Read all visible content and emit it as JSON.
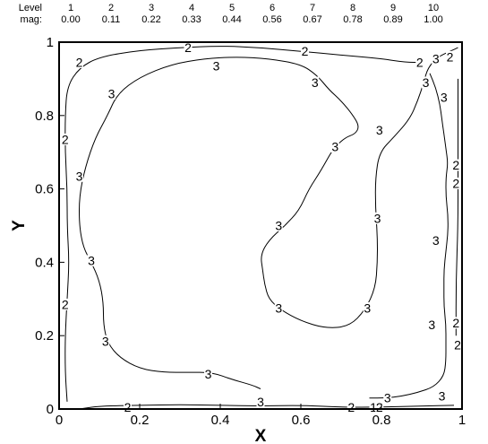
{
  "chart_data": {
    "type": "contour",
    "xlabel": "X",
    "ylabel": "Y",
    "xlim": [
      0,
      1
    ],
    "ylim": [
      0,
      1
    ],
    "x_ticks": [
      "0",
      "0.2",
      "0.4",
      "0.6",
      "0.8",
      "1"
    ],
    "y_ticks": [
      "0",
      "0.2",
      "0.4",
      "0.6",
      "0.8",
      "1"
    ],
    "legend": {
      "placement": "top",
      "row_labels": [
        "Level",
        "mag:"
      ],
      "levels": [
        "1",
        "2",
        "3",
        "4",
        "5",
        "6",
        "7",
        "8",
        "9",
        "10"
      ],
      "mag": [
        "0.00",
        "0.11",
        "0.22",
        "0.33",
        "0.44",
        "0.56",
        "0.67",
        "0.78",
        "0.89",
        "1.00"
      ]
    },
    "contour_labels": [
      {
        "text": "2",
        "x": 0.32,
        "y": 0.985
      },
      {
        "text": "2",
        "x": 0.61,
        "y": 0.975
      },
      {
        "text": "2",
        "x": 0.05,
        "y": 0.945
      },
      {
        "text": "3",
        "x": 0.39,
        "y": 0.935
      },
      {
        "text": "2",
        "x": 0.895,
        "y": 0.945
      },
      {
        "text": "3",
        "x": 0.935,
        "y": 0.955
      },
      {
        "text": "2",
        "x": 0.97,
        "y": 0.96
      },
      {
        "text": "3",
        "x": 0.13,
        "y": 0.86
      },
      {
        "text": "3",
        "x": 0.635,
        "y": 0.89
      },
      {
        "text": "3",
        "x": 0.91,
        "y": 0.89
      },
      {
        "text": "3",
        "x": 0.955,
        "y": 0.85
      },
      {
        "text": "3",
        "x": 0.795,
        "y": 0.76
      },
      {
        "text": "3",
        "x": 0.685,
        "y": 0.715
      },
      {
        "text": "2",
        "x": 0.015,
        "y": 0.735
      },
      {
        "text": "3",
        "x": 0.05,
        "y": 0.635
      },
      {
        "text": "3",
        "x": 0.545,
        "y": 0.5
      },
      {
        "text": "3",
        "x": 0.79,
        "y": 0.52
      },
      {
        "text": "3",
        "x": 0.935,
        "y": 0.46
      },
      {
        "text": "2",
        "x": 0.985,
        "y": 0.665
      },
      {
        "text": "2",
        "x": 0.985,
        "y": 0.615
      },
      {
        "text": "3",
        "x": 0.08,
        "y": 0.405
      },
      {
        "text": "2",
        "x": 0.015,
        "y": 0.285
      },
      {
        "text": "3",
        "x": 0.545,
        "y": 0.275
      },
      {
        "text": "3",
        "x": 0.765,
        "y": 0.275
      },
      {
        "text": "3",
        "x": 0.925,
        "y": 0.23
      },
      {
        "text": "2",
        "x": 0.985,
        "y": 0.235
      },
      {
        "text": "3",
        "x": 0.115,
        "y": 0.185
      },
      {
        "text": "2",
        "x": 0.99,
        "y": 0.175
      },
      {
        "text": "3",
        "x": 0.37,
        "y": 0.095
      },
      {
        "text": "3",
        "x": 0.815,
        "y": 0.03
      },
      {
        "text": "3",
        "x": 0.95,
        "y": 0.035
      },
      {
        "text": "2",
        "x": 0.17,
        "y": 0.005
      },
      {
        "text": "3",
        "x": 0.5,
        "y": 0.02
      },
      {
        "text": "2",
        "x": 0.725,
        "y": 0.0
      },
      {
        "text": "1",
        "x": 0.78,
        "y": 0.0
      },
      {
        "text": "2",
        "x": 0.795,
        "y": 0.0
      }
    ],
    "contours": [
      {
        "level": 3,
        "points": [
          [
            0.56,
            0.5
          ],
          [
            0.52,
            0.46
          ],
          [
            0.5,
            0.42
          ],
          [
            0.505,
            0.38
          ],
          [
            0.51,
            0.34
          ],
          [
            0.52,
            0.3
          ],
          [
            0.55,
            0.27
          ],
          [
            0.6,
            0.24
          ],
          [
            0.66,
            0.22
          ],
          [
            0.72,
            0.225
          ],
          [
            0.76,
            0.27
          ],
          [
            0.785,
            0.33
          ],
          [
            0.79,
            0.4
          ],
          [
            0.79,
            0.47
          ],
          [
            0.785,
            0.55
          ],
          [
            0.785,
            0.63
          ],
          [
            0.795,
            0.7
          ],
          [
            0.83,
            0.74
          ],
          [
            0.87,
            0.79
          ],
          [
            0.89,
            0.84
          ],
          [
            0.905,
            0.89
          ],
          [
            0.915,
            0.93
          ],
          [
            0.94,
            0.96
          ],
          [
            0.97,
            0.975
          ],
          [
            0.99,
            0.985
          ]
        ]
      },
      {
        "level": 3,
        "points": [
          [
            0.56,
            0.5
          ],
          [
            0.595,
            0.54
          ],
          [
            0.62,
            0.6
          ],
          [
            0.65,
            0.65
          ],
          [
            0.68,
            0.71
          ],
          [
            0.71,
            0.74
          ],
          [
            0.735,
            0.75
          ],
          [
            0.745,
            0.77
          ],
          [
            0.73,
            0.8
          ],
          [
            0.7,
            0.84
          ],
          [
            0.67,
            0.87
          ],
          [
            0.64,
            0.91
          ],
          [
            0.6,
            0.94
          ],
          [
            0.52,
            0.955
          ],
          [
            0.44,
            0.96
          ],
          [
            0.36,
            0.955
          ],
          [
            0.28,
            0.94
          ],
          [
            0.2,
            0.905
          ],
          [
            0.145,
            0.86
          ],
          [
            0.12,
            0.8
          ],
          [
            0.09,
            0.74
          ],
          [
            0.065,
            0.66
          ],
          [
            0.05,
            0.58
          ],
          [
            0.05,
            0.5
          ],
          [
            0.06,
            0.44
          ],
          [
            0.08,
            0.4
          ],
          [
            0.1,
            0.35
          ],
          [
            0.11,
            0.29
          ],
          [
            0.11,
            0.23
          ],
          [
            0.12,
            0.18
          ],
          [
            0.15,
            0.14
          ],
          [
            0.2,
            0.11
          ],
          [
            0.26,
            0.1
          ],
          [
            0.32,
            0.1
          ],
          [
            0.38,
            0.1
          ],
          [
            0.43,
            0.08
          ],
          [
            0.48,
            0.065
          ],
          [
            0.5,
            0.055
          ]
        ]
      },
      {
        "level": 3,
        "points": [
          [
            0.92,
            0.915
          ],
          [
            0.935,
            0.875
          ],
          [
            0.945,
            0.83
          ],
          [
            0.95,
            0.79
          ],
          [
            0.955,
            0.75
          ],
          [
            0.96,
            0.71
          ],
          [
            0.965,
            0.67
          ],
          [
            0.96,
            0.63
          ],
          [
            0.96,
            0.58
          ],
          [
            0.965,
            0.53
          ],
          [
            0.965,
            0.48
          ],
          [
            0.96,
            0.43
          ],
          [
            0.955,
            0.38
          ],
          [
            0.955,
            0.33
          ],
          [
            0.955,
            0.28
          ],
          [
            0.96,
            0.23
          ],
          [
            0.96,
            0.18
          ],
          [
            0.96,
            0.13
          ],
          [
            0.955,
            0.09
          ],
          [
            0.93,
            0.06
          ],
          [
            0.89,
            0.045
          ],
          [
            0.85,
            0.035
          ],
          [
            0.81,
            0.03
          ],
          [
            0.77,
            0.03
          ]
        ]
      },
      {
        "level": 2,
        "points": [
          [
            0.02,
            0.02
          ],
          [
            0.015,
            0.1
          ],
          [
            0.015,
            0.2
          ],
          [
            0.02,
            0.3
          ],
          [
            0.025,
            0.4
          ],
          [
            0.02,
            0.5
          ],
          [
            0.02,
            0.6
          ],
          [
            0.015,
            0.7
          ],
          [
            0.015,
            0.8
          ],
          [
            0.02,
            0.88
          ],
          [
            0.05,
            0.93
          ],
          [
            0.1,
            0.96
          ],
          [
            0.2,
            0.978
          ],
          [
            0.3,
            0.985
          ],
          [
            0.4,
            0.99
          ],
          [
            0.5,
            0.985
          ],
          [
            0.6,
            0.975
          ],
          [
            0.7,
            0.965
          ],
          [
            0.8,
            0.955
          ],
          [
            0.86,
            0.945
          ],
          [
            0.9,
            0.945
          ]
        ]
      },
      {
        "level": 2,
        "points": [
          [
            0.985,
            0.2
          ],
          [
            0.985,
            0.35
          ],
          [
            0.99,
            0.5
          ],
          [
            0.99,
            0.65
          ],
          [
            0.99,
            0.8
          ],
          [
            0.99,
            0.9
          ]
        ]
      },
      {
        "level": 2,
        "points": [
          [
            0.05,
            0.0
          ],
          [
            0.1,
            0.008
          ],
          [
            0.2,
            0.01
          ],
          [
            0.3,
            0.012
          ],
          [
            0.4,
            0.01
          ],
          [
            0.5,
            0.008
          ],
          [
            0.6,
            0.01
          ],
          [
            0.7,
            0.005
          ],
          [
            0.8,
            0.005
          ],
          [
            0.9,
            0.008
          ],
          [
            0.98,
            0.01
          ]
        ]
      }
    ]
  }
}
